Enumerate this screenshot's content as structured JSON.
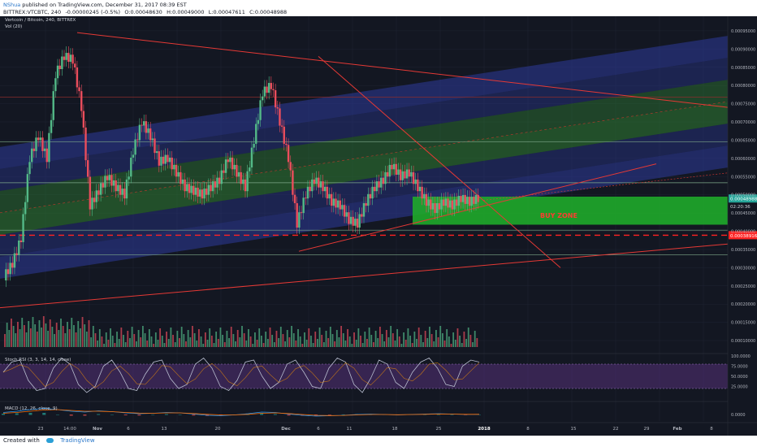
{
  "header": {
    "author": "NShua",
    "published": "published on TradingView.com, December 31, 2017 08:39 EST",
    "symbol": "BITTREX:VTCBTC, 240",
    "open": "O:0.00048630",
    "change": "-0.00000245 (-0.5%)",
    "high": "H:0.00049000",
    "low": "L:0.00047611",
    "close": "C:0.00048988"
  },
  "footer": {
    "created": "Created with",
    "brand": "TradingView"
  },
  "colors": {
    "up": "#53b987",
    "down": "#eb4d5c",
    "background": "#131722",
    "channel_blue": "#2d3a9a",
    "channel_green": "#2f7d32",
    "trendline": "#e53935",
    "buy_zone": "#1faa2a",
    "support": "#ff2222"
  },
  "chart_data": {
    "type": "candlestick",
    "title": "Vertcoin / Bitcoin, 240, BITTREX",
    "volume_label": "Vol (20)",
    "current_price_label": "0.00048988",
    "current_time_label": "02:20:36",
    "support_price_label": "0.00038916",
    "support_price": 0.00038916,
    "annotation": "BUY ZONE",
    "buy_zone": {
      "x_start": "Dec 20",
      "x_end": "Dec 31",
      "price_low": 0.000418,
      "price_high": 0.000495
    },
    "ylim": [
      8e-05,
      0.00099
    ],
    "y_ticks": [
      "0.00095000",
      "0.00090000",
      "0.00085000",
      "0.00080000",
      "0.00075000",
      "0.00070000",
      "0.00065000",
      "0.00060000",
      "0.00055000",
      "0.00050000",
      "0.00045000",
      "0.00040000",
      "0.00035000",
      "0.00030000",
      "0.00025000",
      "0.00020000",
      "0.00015000",
      "0.00010000"
    ],
    "x_ticks": [
      "23",
      "14:00",
      "Nov",
      "6",
      "13",
      "20",
      "Dec",
      "6",
      "11",
      "18",
      "25",
      "2018",
      "8",
      "15",
      "22",
      "29",
      "Feb",
      "8"
    ],
    "price_path": [
      {
        "x": 0,
        "y": 0.000275
      },
      {
        "x": 3,
        "y": 0.00031
      },
      {
        "x": 6,
        "y": 0.00038
      },
      {
        "x": 8,
        "y": 0.0006
      },
      {
        "x": 10,
        "y": 0.00066
      },
      {
        "x": 12,
        "y": 0.0006
      },
      {
        "x": 14,
        "y": 0.00083
      },
      {
        "x": 16,
        "y": 0.00088
      },
      {
        "x": 18,
        "y": 0.00087
      },
      {
        "x": 20,
        "y": 0.00074
      },
      {
        "x": 21,
        "y": 0.00047
      },
      {
        "x": 22,
        "y": 0.00051
      },
      {
        "x": 23,
        "y": 0.00055
      },
      {
        "x": 24,
        "y": 0.00052
      },
      {
        "x": 25,
        "y": 0.0005
      },
      {
        "x": 26,
        "y": 0.00062
      },
      {
        "x": 27,
        "y": 0.0007
      },
      {
        "x": 28,
        "y": 0.00066
      },
      {
        "x": 29,
        "y": 0.00059
      },
      {
        "x": 30,
        "y": 0.0006
      },
      {
        "x": 31,
        "y": 0.00056
      },
      {
        "x": 32,
        "y": 0.00052
      },
      {
        "x": 33,
        "y": 0.00051
      },
      {
        "x": 34,
        "y": 0.0005
      },
      {
        "x": 35,
        "y": 0.00052
      },
      {
        "x": 36,
        "y": 0.00054
      },
      {
        "x": 37,
        "y": 0.0006
      },
      {
        "x": 38,
        "y": 0.00056
      },
      {
        "x": 39,
        "y": 0.00052
      },
      {
        "x": 40,
        "y": 0.00065
      },
      {
        "x": 41,
        "y": 0.00078
      },
      {
        "x": 42,
        "y": 0.0008
      },
      {
        "x": 43,
        "y": 0.0007
      },
      {
        "x": 44,
        "y": 0.0006
      },
      {
        "x": 45,
        "y": 0.00042
      },
      {
        "x": 46,
        "y": 0.0005
      },
      {
        "x": 47,
        "y": 0.00054
      },
      {
        "x": 48,
        "y": 0.00052
      },
      {
        "x": 49,
        "y": 0.00048
      },
      {
        "x": 50,
        "y": 0.00047
      },
      {
        "x": 51,
        "y": 0.00043
      },
      {
        "x": 52,
        "y": 0.00042
      },
      {
        "x": 53,
        "y": 0.00048
      },
      {
        "x": 54,
        "y": 0.00052
      },
      {
        "x": 55,
        "y": 0.00054
      },
      {
        "x": 56,
        "y": 0.00058
      },
      {
        "x": 57,
        "y": 0.00055
      },
      {
        "x": 58,
        "y": 0.00056
      },
      {
        "x": 59,
        "y": 0.00052
      },
      {
        "x": 60,
        "y": 0.00048
      },
      {
        "x": 61,
        "y": 0.00046
      },
      {
        "x": 62,
        "y": 0.00048
      },
      {
        "x": 63,
        "y": 0.00047
      },
      {
        "x": 64,
        "y": 0.00049
      },
      {
        "x": 65,
        "y": 0.00048
      },
      {
        "x": 66,
        "y": 0.00049
      }
    ],
    "stoch_rsi": {
      "label": "Stoch RSI (3, 3, 14, 14, close)",
      "ylim": [
        0,
        100
      ],
      "y_ticks": [
        "100.0000",
        "75.0000",
        "50.0000",
        "25.0000"
      ],
      "k": [
        60,
        85,
        90,
        40,
        15,
        20,
        70,
        95,
        80,
        30,
        10,
        25,
        75,
        90,
        60,
        20,
        15,
        55,
        85,
        90,
        45,
        20,
        30,
        80,
        95,
        70,
        25,
        15,
        40,
        85,
        90,
        50,
        20,
        35,
        80,
        90,
        60,
        25,
        20,
        70,
        95,
        85,
        30,
        10,
        45,
        90,
        80,
        35,
        20,
        60,
        85,
        95,
        70,
        30,
        25,
        75,
        90,
        85
      ]
    },
    "macd": {
      "label": "MACD (12, 26, close, 9)",
      "y_ticks": [
        "0.0000"
      ],
      "macd_line": [
        0.5,
        0.8,
        1.2,
        1.5,
        1.2,
        0.8,
        0.6,
        0.9,
        0.7,
        0.4,
        0.2,
        0.3,
        0.5,
        0.4,
        0.1,
        -0.2,
        -0.3,
        -0.1,
        0.2,
        0.6,
        0.5,
        0.1,
        -0.2,
        -0.4,
        -0.3,
        -0.2,
        0,
        0.1,
        0,
        -0.1,
        0,
        0.1,
        0.2,
        0.1,
        0,
        0.05
      ],
      "signal_line": [
        0.3,
        0.5,
        0.8,
        1.1,
        1.2,
        1.0,
        0.8,
        0.8,
        0.7,
        0.5,
        0.35,
        0.3,
        0.4,
        0.4,
        0.25,
        0.05,
        -0.1,
        -0.1,
        0.05,
        0.3,
        0.4,
        0.25,
        0,
        -0.2,
        -0.25,
        -0.22,
        -0.1,
        0,
        0,
        -0.05,
        0,
        0.05,
        0.12,
        0.1,
        0.05,
        0.05
      ]
    }
  }
}
